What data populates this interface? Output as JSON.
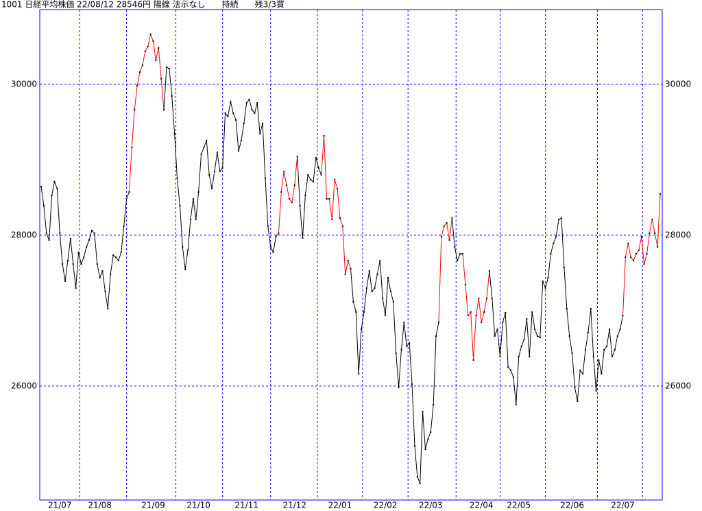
{
  "chart_data": {
    "type": "line",
    "title": "1001 日経平均株価 22/08/12 28546円 陽線 法示なし　　持続　　残3/3買",
    "categories": [
      null,
      null,
      null,
      null,
      null,
      null,
      null,
      "21/07",
      null,
      null,
      null,
      null,
      null,
      null,
      null,
      null,
      null,
      null,
      null,
      null,
      null,
      null,
      "21/08",
      null,
      null,
      null,
      null,
      null,
      null,
      null,
      null,
      null,
      null,
      null,
      null,
      null,
      null,
      null,
      null,
      null,
      null,
      null,
      "21/09",
      null,
      null,
      null,
      null,
      null,
      null,
      null,
      null,
      null,
      null,
      null,
      null,
      null,
      null,
      null,
      null,
      "21/10",
      null,
      null,
      null,
      null,
      null,
      null,
      null,
      null,
      null,
      null,
      null,
      null,
      null,
      null,
      null,
      null,
      null,
      "21/11",
      null,
      null,
      null,
      null,
      null,
      null,
      null,
      null,
      null,
      null,
      null,
      null,
      null,
      null,
      null,
      null,
      null,
      "21/12",
      null,
      null,
      null,
      null,
      null,
      null,
      null,
      null,
      null,
      null,
      null,
      null,
      null,
      null,
      null,
      null,
      "22/01",
      null,
      null,
      null,
      null,
      null,
      null,
      null,
      null,
      null,
      null,
      null,
      null,
      null,
      null,
      null,
      null,
      "22/02",
      null,
      null,
      null,
      null,
      null,
      null,
      null,
      null,
      null,
      null,
      null,
      null,
      null,
      null,
      null,
      null,
      "22/03",
      null,
      null,
      null,
      null,
      null,
      null,
      null,
      null,
      null,
      null,
      null,
      null,
      null,
      null,
      null,
      null,
      null,
      null,
      "22/04",
      null,
      null,
      null,
      null,
      null,
      null,
      null,
      null,
      null,
      null,
      null,
      null,
      null,
      "22/05",
      null,
      null,
      null,
      null,
      null,
      null,
      null,
      null,
      null,
      null,
      null,
      null,
      null,
      null,
      null,
      null,
      null,
      null,
      null,
      "22/06",
      null,
      null,
      null,
      null,
      null,
      null,
      null,
      null,
      null,
      null,
      null,
      null,
      null,
      null,
      null,
      null,
      null,
      null,
      "22/07",
      null,
      null,
      null,
      null,
      null,
      null,
      null,
      null,
      null,
      null,
      null,
      null,
      null,
      null
    ],
    "series": [
      {
        "color": "#000000",
        "values": [
          28645,
          28391,
          28027,
          27936,
          28527,
          28709,
          28618,
          28027,
          27618,
          27391,
          27663,
          27954,
          27618,
          27300,
          27773,
          27618,
          27709,
          27845,
          27936,
          28063,
          28027,
          27618,
          27436,
          27527,
          27254,
          27027,
          27482,
          27736,
          27709,
          27663,
          27773,
          28118,
          28482,
          28573,
          null,
          null,
          null,
          null,
          null,
          null,
          null,
          null,
          null,
          null,
          null,
          null,
          null,
          30227,
          30209,
          29845,
          29345,
          28754,
          28391,
          27845,
          27545,
          27800,
          28209,
          28482,
          28209,
          28573,
          29073,
          29163,
          29254,
          28800,
          28618,
          28845,
          29100,
          28845,
          28891,
          29618,
          29573,
          29773,
          29618,
          29527,
          29118,
          29254,
          29482,
          29754,
          29800,
          29663,
          29618,
          29754,
          29345,
          29482,
          28754,
          28118,
          27845,
          27773,
          27982,
          28027,
          null,
          null,
          null,
          null,
          null,
          null,
          null,
          28391,
          27963,
          28527,
          28800,
          28736,
          28709,
          29027,
          28891,
          28800,
          null,
          null,
          null,
          null,
          null,
          null,
          null,
          null,
          null,
          null,
          null,
          27118,
          26982,
          26163,
          26754,
          26982,
          27300,
          27527,
          27254,
          27300,
          27482,
          27663,
          27163,
          26936,
          27436,
          27254,
          27118,
          26436,
          25982,
          26482,
          26845,
          26527,
          26573,
          26027,
          25209,
          24800,
          24709,
          25663,
          25163,
          25300,
          25391,
          25754,
          26663,
          26845,
          null,
          null,
          null,
          null,
          null,
          27845,
          27663,
          27754,
          27754,
          null,
          null,
          null,
          null,
          null,
          null,
          null,
          null,
          null,
          null,
          27163,
          26663,
          26754,
          26391,
          26845,
          26973,
          26254,
          26209,
          26118,
          25754,
          26391,
          26527,
          26618,
          26891,
          26391,
          26982,
          26754,
          26663,
          26645,
          27391,
          27300,
          27436,
          27754,
          27891,
          27982,
          28209,
          28227,
          27573,
          27027,
          26663,
          26436,
          25982,
          25800,
          26209,
          26163,
          26482,
          26709,
          27027,
          26391,
          25936,
          26345,
          26163,
          26482,
          26527,
          26754,
          26391,
          26482,
          26663,
          26754,
          26936,
          null,
          null,
          null,
          null,
          null,
          null,
          null,
          null,
          null,
          null,
          null,
          null,
          null,
          null
        ]
      },
      {
        "color": "#ff0000",
        "values": [
          null,
          null,
          null,
          null,
          null,
          null,
          null,
          null,
          null,
          null,
          null,
          null,
          null,
          null,
          null,
          null,
          null,
          null,
          null,
          null,
          null,
          null,
          null,
          null,
          null,
          null,
          null,
          null,
          null,
          null,
          null,
          null,
          null,
          null,
          29163,
          29663,
          29982,
          30163,
          30254,
          30436,
          30500,
          30663,
          30573,
          30318,
          30482,
          30073,
          29663,
          null,
          null,
          null,
          null,
          null,
          null,
          null,
          null,
          null,
          null,
          null,
          null,
          null,
          null,
          null,
          null,
          null,
          null,
          null,
          null,
          null,
          null,
          null,
          null,
          null,
          null,
          null,
          null,
          null,
          null,
          null,
          null,
          null,
          null,
          null,
          null,
          null,
          null,
          null,
          null,
          null,
          null,
          null,
          28573,
          28845,
          28663,
          28482,
          28436,
          28663,
          29045,
          null,
          null,
          null,
          null,
          null,
          null,
          null,
          null,
          null,
          29318,
          28482,
          28482,
          28209,
          28736,
          28618,
          28227,
          28118,
          27482,
          27663,
          27554,
          null,
          null,
          null,
          null,
          null,
          null,
          null,
          null,
          null,
          null,
          null,
          null,
          null,
          null,
          null,
          null,
          null,
          null,
          null,
          null,
          null,
          null,
          null,
          null,
          null,
          null,
          null,
          null,
          null,
          null,
          null,
          null,
          null,
          27982,
          28118,
          28163,
          27936,
          28227,
          null,
          null,
          null,
          null,
          27345,
          26936,
          26982,
          26345,
          26936,
          27163,
          26845,
          26982,
          27163,
          27527,
          null,
          null,
          null,
          null,
          null,
          null,
          null,
          null,
          null,
          null,
          null,
          null,
          null,
          null,
          null,
          null,
          null,
          null,
          null,
          null,
          null,
          null,
          null,
          null,
          null,
          null,
          null,
          null,
          null,
          null,
          null,
          null,
          null,
          null,
          null,
          null,
          null,
          null,
          null,
          null,
          null,
          null,
          null,
          null,
          null,
          null,
          null,
          null,
          null,
          null,
          27709,
          27891,
          27709,
          27663,
          27754,
          27800,
          27982,
          27618,
          27754,
          28027,
          28209,
          28027,
          27845,
          28546
        ]
      }
    ],
    "ylim": [
      24490,
      30990
    ],
    "yticks": [
      26000,
      28000,
      30000
    ],
    "grid": true
  }
}
